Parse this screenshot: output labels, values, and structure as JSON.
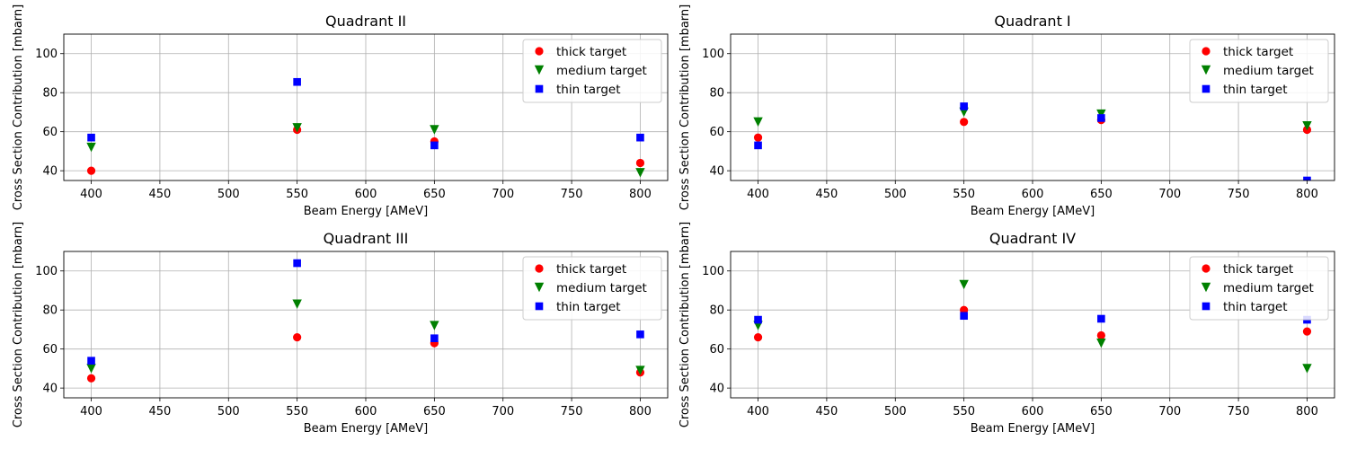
{
  "chart_data": [
    {
      "type": "scatter",
      "title": "Quadrant II",
      "xlabel": "Beam Energy [AMeV]",
      "ylabel": "Cross Section Contribution [mbarn]",
      "xlim": [
        380,
        820
      ],
      "ylim": [
        35,
        110
      ],
      "xticks": [
        400,
        450,
        500,
        550,
        600,
        650,
        700,
        750,
        800
      ],
      "yticks": [
        40,
        60,
        80,
        100
      ],
      "grid": true,
      "legend_position": "top-right",
      "x": [
        400,
        550,
        650,
        800
      ],
      "series": [
        {
          "name": "thick target",
          "marker": "circle",
          "color": "#ff0000",
          "values": [
            40,
            61,
            55,
            44
          ]
        },
        {
          "name": "medium target",
          "marker": "triangle-down",
          "color": "#008000",
          "values": [
            52,
            62,
            61,
            39
          ]
        },
        {
          "name": "thin target",
          "marker": "square",
          "color": "#0000ff",
          "values": [
            57,
            85.5,
            53,
            57
          ]
        }
      ]
    },
    {
      "type": "scatter",
      "title": "Quadrant I",
      "xlabel": "Beam Energy [AMeV]",
      "ylabel": "Cross Section Contribution [mbarn]",
      "xlim": [
        380,
        820
      ],
      "ylim": [
        35,
        110
      ],
      "xticks": [
        400,
        450,
        500,
        550,
        600,
        650,
        700,
        750,
        800
      ],
      "yticks": [
        40,
        60,
        80,
        100
      ],
      "grid": true,
      "legend_position": "top-right",
      "x": [
        400,
        550,
        650,
        800
      ],
      "series": [
        {
          "name": "thick target",
          "marker": "circle",
          "color": "#ff0000",
          "values": [
            57,
            65,
            66,
            61
          ]
        },
        {
          "name": "medium target",
          "marker": "triangle-down",
          "color": "#008000",
          "values": [
            65,
            70,
            69,
            63
          ]
        },
        {
          "name": "thin target",
          "marker": "square",
          "color": "#0000ff",
          "values": [
            53,
            73,
            67,
            35
          ]
        }
      ]
    },
    {
      "type": "scatter",
      "title": "Quadrant III",
      "xlabel": "Beam Energy [AMeV]",
      "ylabel": "Cross Section Contribution [mbarn]",
      "xlim": [
        380,
        820
      ],
      "ylim": [
        35,
        110
      ],
      "xticks": [
        400,
        450,
        500,
        550,
        600,
        650,
        700,
        750,
        800
      ],
      "yticks": [
        40,
        60,
        80,
        100
      ],
      "grid": true,
      "legend_position": "top-right",
      "x": [
        400,
        550,
        650,
        800
      ],
      "series": [
        {
          "name": "thick target",
          "marker": "circle",
          "color": "#ff0000",
          "values": [
            45,
            66,
            63,
            48
          ]
        },
        {
          "name": "medium target",
          "marker": "triangle-down",
          "color": "#008000",
          "values": [
            50,
            83,
            72,
            49
          ]
        },
        {
          "name": "thin target",
          "marker": "square",
          "color": "#0000ff",
          "values": [
            54,
            104,
            65.5,
            67.5
          ]
        }
      ]
    },
    {
      "type": "scatter",
      "title": "Quadrant IV",
      "xlabel": "Beam Energy [AMeV]",
      "ylabel": "Cross Section Contribution [mbarn]",
      "xlim": [
        380,
        820
      ],
      "ylim": [
        35,
        110
      ],
      "xticks": [
        400,
        450,
        500,
        550,
        600,
        650,
        700,
        750,
        800
      ],
      "yticks": [
        40,
        60,
        80,
        100
      ],
      "grid": true,
      "legend_position": "top-right",
      "x": [
        400,
        550,
        650,
        800
      ],
      "series": [
        {
          "name": "thick target",
          "marker": "circle",
          "color": "#ff0000",
          "values": [
            66,
            80,
            67,
            69
          ]
        },
        {
          "name": "medium target",
          "marker": "triangle-down",
          "color": "#008000",
          "values": [
            72,
            93,
            63,
            50
          ]
        },
        {
          "name": "thin target",
          "marker": "square",
          "color": "#0000ff",
          "values": [
            75,
            77,
            75.5,
            75
          ]
        }
      ]
    }
  ]
}
